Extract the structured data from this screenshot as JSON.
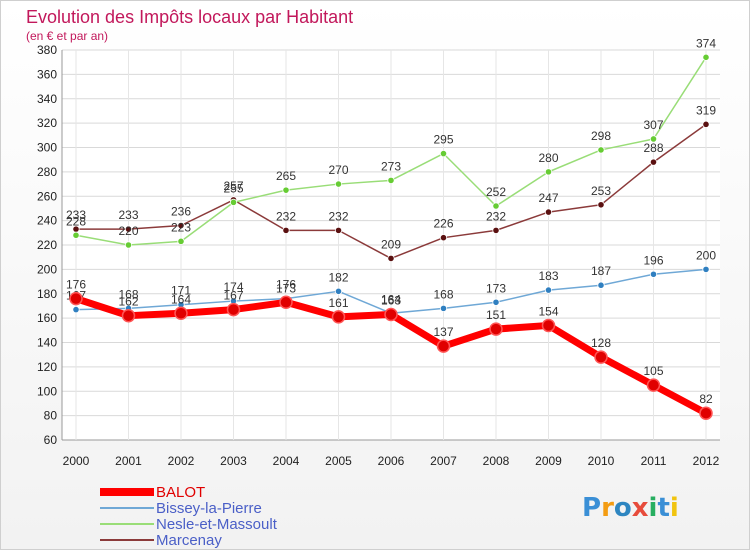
{
  "chart_data": {
    "type": "line",
    "title": "Evolution des Impôts locaux par Habitant",
    "subtitle": "(en € et par an)",
    "xlabel": "",
    "ylabel": "",
    "x": [
      "2000",
      "2001",
      "2002",
      "2003",
      "2004",
      "2005",
      "2006",
      "2007",
      "2008",
      "2009",
      "2010",
      "2011",
      "2012"
    ],
    "ylim": [
      60,
      380
    ],
    "yticks": [
      60,
      80,
      100,
      120,
      140,
      160,
      180,
      200,
      220,
      240,
      260,
      280,
      300,
      320,
      340,
      360,
      380
    ],
    "grid": true,
    "legend_position": "bottom-left",
    "series": [
      {
        "name": "BALOT",
        "color": "#ff0000",
        "point_color": "#e00000",
        "values": [
          176,
          162,
          164,
          167,
          173,
          161,
          163,
          137,
          151,
          154,
          128,
          105,
          82
        ],
        "labels": [
          "176",
          "162",
          "164",
          "167",
          "173",
          "161",
          "163",
          "137",
          "151",
          "154",
          "128",
          "105",
          "82"
        ]
      },
      {
        "name": "Bissey-la-Pierre",
        "color": "#6fa8d6",
        "point_color": "#2f7fc0",
        "values": [
          167,
          168,
          171,
          174,
          176,
          182,
          164,
          168,
          173,
          183,
          187,
          196,
          200
        ],
        "labels": [
          "167",
          "168",
          "171",
          "174",
          "176",
          "182",
          "164",
          "168",
          "173",
          "183",
          "187",
          "196",
          "200"
        ]
      },
      {
        "name": "Nesle-et-Massoult",
        "color": "#99dd77",
        "point_color": "#66cc33",
        "values": [
          228,
          220,
          223,
          255,
          265,
          270,
          273,
          295,
          252,
          280,
          298,
          307,
          374
        ],
        "labels": [
          "228",
          "220",
          "223",
          "255",
          "265",
          "270",
          "273",
          "295",
          "252",
          "280",
          "298",
          "307",
          "374"
        ]
      },
      {
        "name": "Marcenay",
        "color": "#8b3a3a",
        "point_color": "#5a1010",
        "values": [
          233,
          233,
          236,
          257,
          232,
          232,
          209,
          226,
          232,
          247,
          253,
          288,
          319
        ],
        "labels": [
          "233",
          "233",
          "236",
          "257",
          "232",
          "232",
          "209",
          "226",
          "232",
          "247",
          "253",
          "288",
          "319"
        ]
      }
    ]
  },
  "logo": {
    "text": "Proxiti",
    "letters": [
      "P",
      "r",
      "o",
      "x",
      "i",
      "t",
      "i"
    ],
    "colors": [
      "#3a8fd6",
      "#f39c12",
      "#2e86c1",
      "#e74c3c",
      "#27ae60",
      "#3a8fd6",
      "#f1c40f"
    ]
  }
}
